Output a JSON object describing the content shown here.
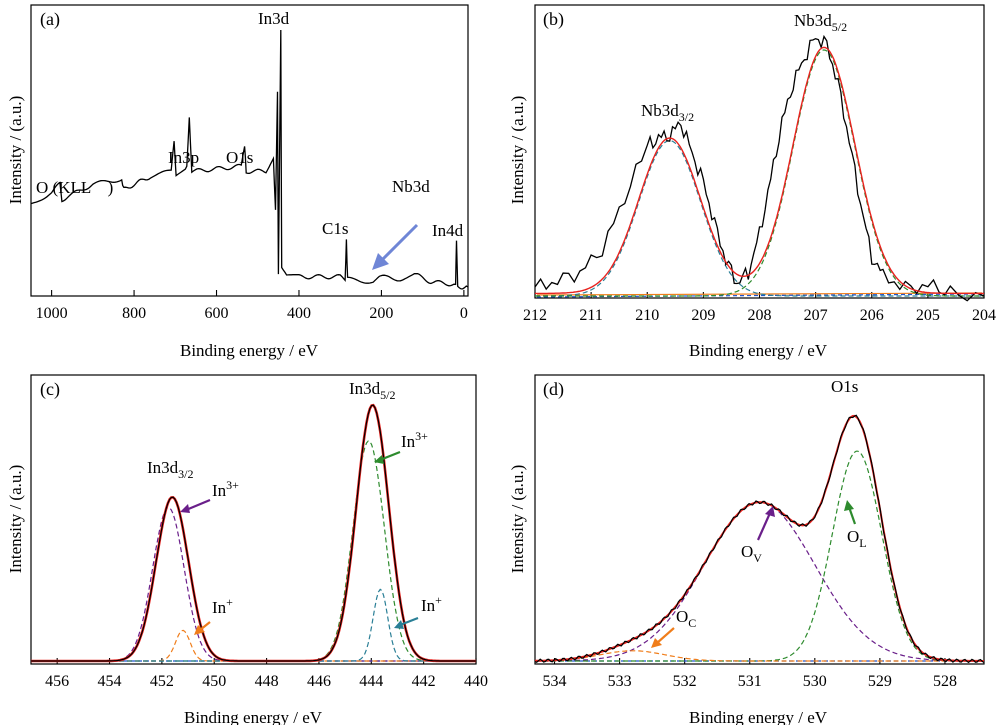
{
  "colors": {
    "spectrum": "#000000",
    "fit_envelope": "#e8231f",
    "component_green": "#2e8b2e",
    "component_purple": "#6a1f8a",
    "component_teal": "#2a7f96",
    "component_orange": "#f07d1a",
    "baseline_blue": "#2255cc",
    "survey_arrow": "#6f86d6"
  },
  "chart_data": [
    {
      "panel": "(a)",
      "type": "line",
      "xlabel": "Binding energy / eV",
      "ylabel": "Intensity / (a.u.)",
      "xlim": [
        1050,
        -10
      ],
      "x_ticks": [
        1000,
        800,
        600,
        400,
        200,
        0
      ],
      "y_ticks_visible": false,
      "annotations": [
        {
          "text": "In3d",
          "x": 444
        },
        {
          "text": "In3p",
          "x": 666
        },
        {
          "text": "O1s",
          "x": 530
        },
        {
          "text": "O (KLL　)",
          "x": 975
        },
        {
          "text": "C1s",
          "x": 285
        },
        {
          "text": "Nb3d",
          "x": 207,
          "arrow": true
        },
        {
          "text": "In4d",
          "x": 18
        }
      ],
      "series": [
        {
          "points": [
            [
              1050,
              0.32
            ],
            [
              1000,
              0.37
            ],
            [
              980,
              0.4
            ],
            [
              975,
              0.34
            ],
            [
              900,
              0.4
            ],
            [
              830,
              0.42
            ],
            [
              825,
              0.38
            ],
            [
              760,
              0.43
            ],
            [
              710,
              0.45
            ],
            [
              703,
              0.56
            ],
            [
              698,
              0.44
            ],
            [
              672,
              0.47
            ],
            [
              666,
              0.66
            ],
            [
              660,
              0.45
            ],
            [
              600,
              0.46
            ],
            [
              540,
              0.47
            ],
            [
              532,
              0.55
            ],
            [
              528,
              0.45
            ],
            [
              480,
              0.45
            ],
            [
              462,
              0.5
            ],
            [
              457,
              0.3
            ],
            [
              452,
              0.76
            ],
            [
              450,
              0.05
            ],
            [
              444,
              1.0
            ],
            [
              442,
              0.08
            ],
            [
              430,
              0.04
            ],
            [
              400,
              0.04
            ],
            [
              300,
              0.04
            ],
            [
              288,
              0.03
            ],
            [
              285,
              0.18
            ],
            [
              282,
              0.03
            ],
            [
              220,
              0.02
            ],
            [
              205,
              0.04
            ],
            [
              150,
              0.03
            ],
            [
              120,
              0.05
            ],
            [
              80,
              0.02
            ],
            [
              20,
              0.01
            ],
            [
              18,
              0.18
            ],
            [
              15,
              0.0
            ],
            [
              -10,
              0.0
            ]
          ]
        }
      ]
    },
    {
      "panel": "(b)",
      "type": "line",
      "xlabel": "Binding energy / eV",
      "ylabel": "Intensity / (a.u.)",
      "xlim": [
        212,
        204
      ],
      "x_ticks": [
        212,
        211,
        210,
        209,
        208,
        207,
        206,
        205,
        204
      ],
      "y_ticks_visible": false,
      "annotations": [
        {
          "text": "Nb3d",
          "sub": "3/2",
          "x": 209.6
        },
        {
          "text": "Nb3d",
          "sub": "5/2",
          "x": 206.85
        }
      ],
      "series": [
        {
          "role": "spectrum",
          "points": [
            [
              212,
              0.03
            ],
            [
              211.6,
              0.06
            ],
            [
              211.2,
              0.09
            ],
            [
              210.8,
              0.18
            ],
            [
              210.4,
              0.38
            ],
            [
              210.0,
              0.58
            ],
            [
              209.8,
              0.61
            ],
            [
              209.6,
              0.62
            ],
            [
              209.4,
              0.67
            ],
            [
              209.2,
              0.55
            ],
            [
              209.0,
              0.44
            ],
            [
              208.8,
              0.28
            ],
            [
              208.6,
              0.14
            ],
            [
              208.4,
              0.05
            ],
            [
              208.2,
              0.09
            ],
            [
              208.0,
              0.24
            ],
            [
              207.8,
              0.45
            ],
            [
              207.6,
              0.67
            ],
            [
              207.4,
              0.82
            ],
            [
              207.2,
              0.92
            ],
            [
              207.0,
              1.0
            ],
            [
              206.8,
              0.97
            ],
            [
              206.6,
              0.82
            ],
            [
              206.4,
              0.6
            ],
            [
              206.2,
              0.36
            ],
            [
              206.0,
              0.15
            ],
            [
              205.8,
              0.08
            ],
            [
              205.4,
              0.03
            ],
            [
              205.0,
              0.04
            ],
            [
              204.6,
              0.02
            ],
            [
              204,
              0.0
            ]
          ]
        },
        {
          "role": "fit",
          "peaks": [
            {
              "center": 209.6,
              "height": 0.6,
              "width": 0.55
            },
            {
              "center": 206.85,
              "height": 0.95,
              "width": 0.55
            }
          ]
        },
        {
          "role": "component",
          "peaks": [
            {
              "center": 209.6,
              "height": 0.6,
              "width": 0.55
            }
          ]
        },
        {
          "role": "component",
          "peaks": [
            {
              "center": 206.85,
              "height": 0.95,
              "width": 0.55
            }
          ]
        }
      ]
    },
    {
      "panel": "(c)",
      "type": "line",
      "xlabel": "Binding energy / eV",
      "ylabel": "Intensity / (a.u.)",
      "xlim": [
        457,
        440
      ],
      "x_ticks": [
        456,
        454,
        452,
        450,
        448,
        446,
        444,
        442,
        440
      ],
      "y_ticks_visible": false,
      "annotations": [
        {
          "text": "In3d",
          "sub": "3/2",
          "x": 451.6
        },
        {
          "text": "In3d",
          "sub": "5/2",
          "x": 443.9
        },
        {
          "text": "In",
          "sup": "3+",
          "x": 451.4
        },
        {
          "text": "In",
          "sup": "3+",
          "x": 443.8
        },
        {
          "text": "In",
          "sup": "+",
          "x": 451.1
        },
        {
          "text": "In",
          "sup": "+",
          "x": 443.6
        }
      ],
      "series": [
        {
          "role": "spectrum",
          "peaks": [
            {
              "center": 451.6,
              "height": 0.64,
              "width": 0.62
            },
            {
              "center": 443.95,
              "height": 1.0,
              "width": 0.62
            }
          ]
        },
        {
          "role": "fit",
          "peaks": [
            {
              "center": 451.6,
              "height": 0.64,
              "width": 0.62
            },
            {
              "center": 443.95,
              "height": 1.0,
              "width": 0.62
            }
          ]
        },
        {
          "role": "component In3+",
          "peaks": [
            {
              "center": 451.75,
              "height": 0.6,
              "width": 0.6
            },
            {
              "center": 444.1,
              "height": 0.86,
              "width": 0.6
            }
          ]
        },
        {
          "role": "component In+",
          "peaks": [
            {
              "center": 451.2,
              "height": 0.12,
              "width": 0.28
            },
            {
              "center": 443.65,
              "height": 0.28,
              "width": 0.28
            }
          ]
        }
      ]
    },
    {
      "panel": "(d)",
      "type": "line",
      "xlabel": "Binding energy / eV",
      "ylabel": "Intensity / (a.u.)",
      "xlim": [
        534.3,
        527.4
      ],
      "x_ticks": [
        534,
        533,
        532,
        531,
        530,
        529,
        528
      ],
      "y_ticks_visible": false,
      "annotations": [
        {
          "text": "O1s",
          "x": 529.4
        },
        {
          "text": "O",
          "sub": "V",
          "x": 530.8
        },
        {
          "text": "O",
          "sub": "L",
          "x": 529.3
        },
        {
          "text": "O",
          "sub": "C",
          "x": 532.5
        }
      ],
      "series": [
        {
          "role": "spectrum",
          "peaks": [
            {
              "center": 530.85,
              "height": 0.62,
              "width": 0.85
            },
            {
              "center": 529.35,
              "height": 0.82,
              "width": 0.38
            },
            {
              "center": 532.8,
              "height": 0.04,
              "width": 0.5
            }
          ]
        },
        {
          "role": "fit",
          "peaks": [
            {
              "center": 530.85,
              "height": 0.62,
              "width": 0.85
            },
            {
              "center": 529.35,
              "height": 0.82,
              "width": 0.38
            },
            {
              "center": 532.8,
              "height": 0.04,
              "width": 0.5
            }
          ]
        },
        {
          "role": "component O_V",
          "peaks": [
            {
              "center": 530.85,
              "height": 0.62,
              "width": 0.85
            }
          ]
        },
        {
          "role": "component O_L",
          "peaks": [
            {
              "center": 529.35,
              "height": 0.82,
              "width": 0.38
            }
          ]
        },
        {
          "role": "component O_C",
          "peaks": [
            {
              "center": 532.8,
              "height": 0.04,
              "width": 0.5
            }
          ]
        }
      ]
    }
  ]
}
